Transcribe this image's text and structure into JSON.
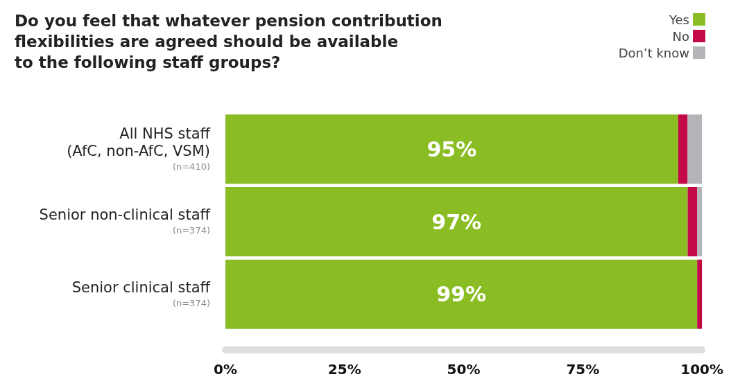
{
  "chart_data": {
    "type": "bar",
    "orientation": "horizontal",
    "stacked": true,
    "title": "Do you feel that whatever pension contribution\nflexibilities are agreed should be available\nto the following staff groups?",
    "categories": [
      "All NHS staff\n(AfC, non-AfC, VSM)\n(n=410)",
      "Senior non-clinical staff\n(n=374)",
      "Senior clinical staff\n(n=374)"
    ],
    "series": [
      {
        "name": "Yes",
        "color": "#8abd24",
        "values": [
          95,
          97,
          99
        ],
        "value_labels": [
          "95%",
          "97%",
          "99%"
        ]
      },
      {
        "name": "No",
        "color": "#c40a46",
        "values": [
          2,
          2,
          1
        ]
      },
      {
        "name": "Don’t know",
        "color": "#b3b5b8",
        "values": [
          3,
          1,
          0
        ]
      }
    ],
    "xlim": [
      0,
      100
    ],
    "xticks": [
      {
        "value": 0,
        "label": "0%"
      },
      {
        "value": 25,
        "label": "25%"
      },
      {
        "value": 50,
        "label": "50%"
      },
      {
        "value": 75,
        "label": "75%"
      },
      {
        "value": 100,
        "label": "100%"
      }
    ],
    "grid": false,
    "legend": "top right"
  }
}
